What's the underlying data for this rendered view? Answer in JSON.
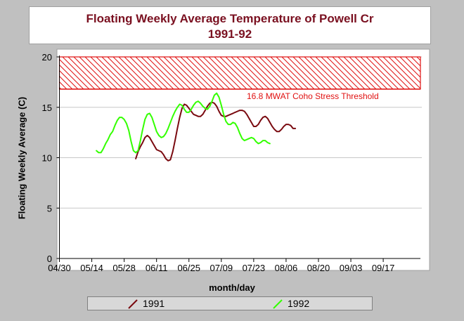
{
  "title": {
    "line1": "Floating Weekly Average Temperature of Powell Cr",
    "line2": "1991-92"
  },
  "colors": {
    "title": "#7a1020",
    "series_1991": "#7a0a10",
    "series_1992": "#33ff00",
    "threshold": "#e01010"
  },
  "legend": [
    {
      "label": "1991",
      "color": "#7a0a10"
    },
    {
      "label": "1992",
      "color": "#33ff00"
    }
  ],
  "chart_data": {
    "type": "line",
    "title": "Floating Weekly Average Temperature of Powell Cr 1991-92",
    "xlabel": "month/day",
    "ylabel": "Floating Weekly Average (C)",
    "x_ticks": [
      "04/30",
      "05/14",
      "05/28",
      "06/11",
      "06/25",
      "07/09",
      "07/23",
      "08/06",
      "08/20",
      "09/03",
      "09/17"
    ],
    "y_ticks": [
      0,
      5,
      10,
      15,
      20
    ],
    "ylim": [
      0,
      20
    ],
    "grid": true,
    "legend_position": "bottom",
    "threshold": {
      "value": 16.8,
      "upper": 20,
      "label": "16.8 MWAT Coho Stress Threshold"
    },
    "series": [
      {
        "name": "1991",
        "points": [
          [
            33,
            9.9
          ],
          [
            34,
            10.6
          ],
          [
            35,
            11.1
          ],
          [
            36,
            11.5
          ],
          [
            37,
            12.0
          ],
          [
            38,
            12.2
          ],
          [
            39,
            12.0
          ],
          [
            40,
            11.6
          ],
          [
            41,
            11.2
          ],
          [
            42,
            10.8
          ],
          [
            43,
            10.7
          ],
          [
            44,
            10.6
          ],
          [
            45,
            10.3
          ],
          [
            46,
            9.9
          ],
          [
            47,
            9.7
          ],
          [
            48,
            9.8
          ],
          [
            49,
            10.6
          ],
          [
            50,
            11.7
          ],
          [
            51,
            12.9
          ],
          [
            52,
            14.0
          ],
          [
            53,
            14.9
          ],
          [
            54,
            15.3
          ],
          [
            55,
            15.2
          ],
          [
            56,
            14.9
          ],
          [
            57,
            14.6
          ],
          [
            58,
            14.3
          ],
          [
            59,
            14.2
          ],
          [
            60,
            14.1
          ],
          [
            61,
            14.1
          ],
          [
            62,
            14.3
          ],
          [
            63,
            14.7
          ],
          [
            64,
            15.1
          ],
          [
            65,
            15.4
          ],
          [
            66,
            15.5
          ],
          [
            67,
            15.4
          ],
          [
            68,
            15.1
          ],
          [
            69,
            14.6
          ],
          [
            70,
            14.2
          ],
          [
            71,
            14.1
          ],
          [
            72,
            14.1
          ],
          [
            73,
            14.2
          ],
          [
            74,
            14.3
          ],
          [
            75,
            14.4
          ],
          [
            76,
            14.5
          ],
          [
            77,
            14.6
          ],
          [
            78,
            14.7
          ],
          [
            79,
            14.7
          ],
          [
            80,
            14.6
          ],
          [
            81,
            14.3
          ],
          [
            82,
            13.9
          ],
          [
            83,
            13.5
          ],
          [
            84,
            13.1
          ],
          [
            85,
            13.1
          ],
          [
            86,
            13.3
          ],
          [
            87,
            13.7
          ],
          [
            88,
            14.0
          ],
          [
            89,
            14.1
          ],
          [
            90,
            13.9
          ],
          [
            91,
            13.5
          ],
          [
            92,
            13.1
          ],
          [
            93,
            12.8
          ],
          [
            94,
            12.6
          ],
          [
            95,
            12.6
          ],
          [
            96,
            12.8
          ],
          [
            97,
            13.1
          ],
          [
            98,
            13.3
          ],
          [
            99,
            13.3
          ],
          [
            100,
            13.2
          ],
          [
            101,
            12.9
          ],
          [
            102,
            12.9
          ]
        ]
      },
      {
        "name": "1992",
        "points": [
          [
            16,
            10.7
          ],
          [
            17,
            10.5
          ],
          [
            18,
            10.5
          ],
          [
            19,
            10.9
          ],
          [
            20,
            11.4
          ],
          [
            21,
            11.8
          ],
          [
            22,
            12.3
          ],
          [
            23,
            12.6
          ],
          [
            24,
            13.2
          ],
          [
            25,
            13.7
          ],
          [
            26,
            14.0
          ],
          [
            27,
            14.0
          ],
          [
            28,
            13.8
          ],
          [
            29,
            13.4
          ],
          [
            30,
            12.7
          ],
          [
            31,
            11.6
          ],
          [
            32,
            10.7
          ],
          [
            33,
            10.5
          ],
          [
            34,
            10.7
          ],
          [
            35,
            11.7
          ],
          [
            36,
            12.8
          ],
          [
            37,
            13.8
          ],
          [
            38,
            14.3
          ],
          [
            39,
            14.4
          ],
          [
            40,
            14.0
          ],
          [
            41,
            13.3
          ],
          [
            42,
            12.6
          ],
          [
            43,
            12.2
          ],
          [
            44,
            12.0
          ],
          [
            45,
            12.1
          ],
          [
            46,
            12.4
          ],
          [
            47,
            12.9
          ],
          [
            48,
            13.5
          ],
          [
            49,
            14.1
          ],
          [
            50,
            14.6
          ],
          [
            51,
            15.0
          ],
          [
            52,
            15.3
          ],
          [
            53,
            15.2
          ],
          [
            54,
            14.8
          ],
          [
            55,
            14.5
          ],
          [
            56,
            14.5
          ],
          [
            57,
            14.8
          ],
          [
            58,
            15.2
          ],
          [
            59,
            15.5
          ],
          [
            60,
            15.6
          ],
          [
            61,
            15.4
          ],
          [
            62,
            15.1
          ],
          [
            63,
            14.9
          ],
          [
            64,
            14.8
          ],
          [
            65,
            15.1
          ],
          [
            66,
            15.6
          ],
          [
            67,
            16.2
          ],
          [
            68,
            16.4
          ],
          [
            69,
            16.0
          ],
          [
            70,
            15.2
          ],
          [
            71,
            14.3
          ],
          [
            72,
            13.6
          ],
          [
            73,
            13.3
          ],
          [
            74,
            13.3
          ],
          [
            75,
            13.5
          ],
          [
            76,
            13.4
          ],
          [
            77,
            13.0
          ],
          [
            78,
            12.4
          ],
          [
            79,
            11.9
          ],
          [
            80,
            11.7
          ],
          [
            81,
            11.8
          ],
          [
            82,
            11.9
          ],
          [
            83,
            12.0
          ],
          [
            84,
            11.9
          ],
          [
            85,
            11.6
          ],
          [
            86,
            11.4
          ],
          [
            87,
            11.5
          ],
          [
            88,
            11.7
          ],
          [
            89,
            11.7
          ],
          [
            90,
            11.5
          ],
          [
            91,
            11.4
          ]
        ]
      }
    ]
  }
}
